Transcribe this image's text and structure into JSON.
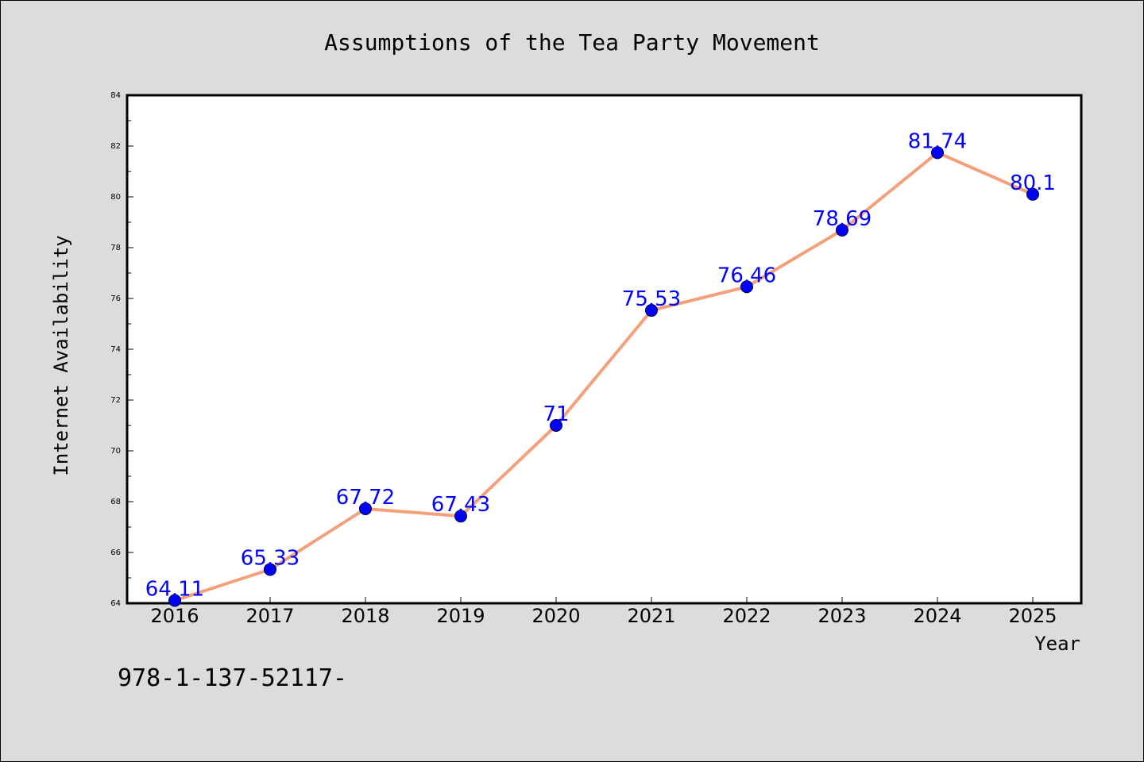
{
  "chart_data": {
    "type": "line",
    "title": "Assumptions of the Tea Party Movement",
    "xlabel": "Year",
    "ylabel": "Internet Availability",
    "categories": [
      "2016",
      "2017",
      "2018",
      "2019",
      "2020",
      "2021",
      "2022",
      "2023",
      "2024",
      "2025"
    ],
    "series": [
      {
        "values": [
          64.11,
          65.33,
          67.72,
          67.43,
          71,
          75.53,
          76.46,
          78.69,
          81.74,
          80.1
        ],
        "labels": [
          "64.11",
          "65.33",
          "67.72",
          "67.43",
          "71",
          "75.53",
          "76.46",
          "78.69",
          "81.74",
          "80.1"
        ]
      }
    ],
    "ylim": [
      64,
      84
    ],
    "yticks": [
      "64",
      "66",
      "68",
      "70",
      "72",
      "74",
      "76",
      "78",
      "80",
      "82",
      "84"
    ],
    "grid": false,
    "legend": "none",
    "colors": {
      "line": "#f4a07a",
      "marker": "#0000ff",
      "label": "#0000ff",
      "background": "#dcdcdc",
      "plot_area": "#ffffff"
    }
  },
  "footer": {
    "text": "978-1-137-52117-"
  }
}
